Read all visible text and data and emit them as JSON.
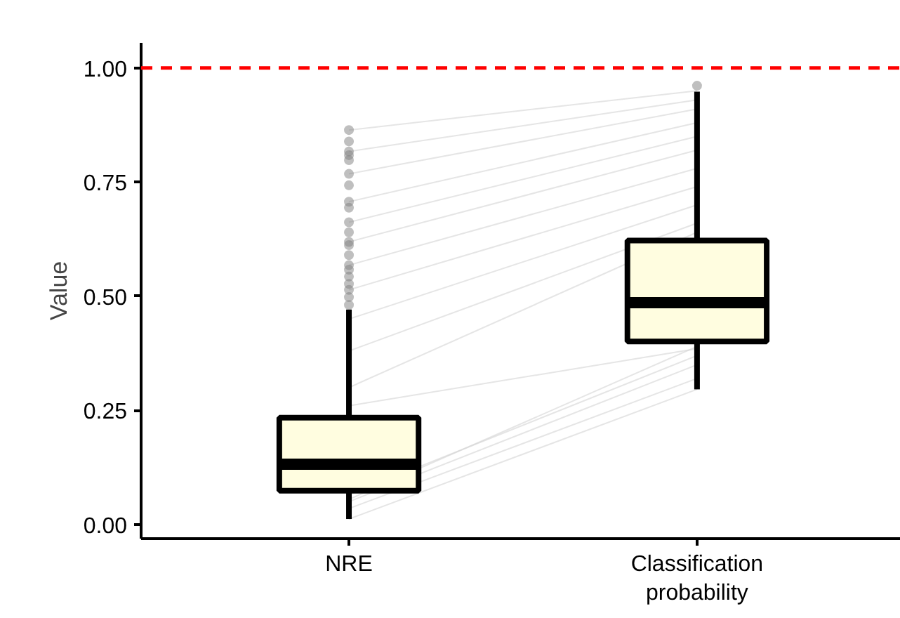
{
  "chart_data": {
    "type": "box",
    "ylabel": "Value",
    "categories": [
      "NRE",
      "Classification probability"
    ],
    "ylim": [
      -0.031,
      1.055
    ],
    "yticks": [
      {
        "value": 0,
        "label": "0.00"
      },
      {
        "value": 0.25,
        "label": "0.25"
      },
      {
        "value": 0.5,
        "label": "0.50"
      },
      {
        "value": 0.75,
        "label": "0.75"
      },
      {
        "value": 1,
        "label": "1.00"
      }
    ],
    "grid": false,
    "ref_lines": [
      {
        "axis": "y",
        "value": 1.0,
        "label": null,
        "color": "#ff0000",
        "line_style": "dashed"
      }
    ],
    "series": [
      {
        "type": "line",
        "color": "#d3d3d3",
        "values": [
          0.864,
          0.95
        ]
      },
      {
        "type": "line",
        "color": "#d3d3d3",
        "values": [
          0.817,
          0.93
        ]
      },
      {
        "type": "line",
        "color": "#d3d3d3",
        "values": [
          0.768,
          0.91
        ]
      },
      {
        "type": "line",
        "color": "#d3d3d3",
        "values": [
          0.707,
          0.88
        ]
      },
      {
        "type": "line",
        "color": "#d3d3d3",
        "values": [
          0.662,
          0.85
        ]
      },
      {
        "type": "line",
        "color": "#d3d3d3",
        "values": [
          0.619,
          0.82
        ]
      },
      {
        "type": "line",
        "color": "#d3d3d3",
        "values": [
          0.568,
          0.78
        ]
      },
      {
        "type": "line",
        "color": "#d3d3d3",
        "values": [
          0.514,
          0.74
        ]
      },
      {
        "type": "line",
        "color": "#d3d3d3",
        "values": [
          0.45,
          0.7
        ]
      },
      {
        "type": "line",
        "color": "#d3d3d3",
        "values": [
          0.38,
          0.66
        ]
      },
      {
        "type": "line",
        "color": "#d3d3d3",
        "values": [
          0.3,
          0.64
        ]
      },
      {
        "type": "line",
        "color": "#d3d3d3",
        "values": [
          0.26,
          0.385
        ]
      },
      {
        "type": "line",
        "color": "#d3d3d3",
        "values": [
          0.065,
          0.37
        ]
      },
      {
        "type": "line",
        "color": "#d3d3d3",
        "values": [
          0.035,
          0.32
        ]
      },
      {
        "type": "line",
        "color": "#d3d3d3",
        "values": [
          0.055,
          0.39
        ]
      },
      {
        "type": "line",
        "color": "#d3d3d3",
        "values": [
          0.05,
          0.35
        ]
      },
      {
        "type": "line",
        "color": "#d3d3d3",
        "values": [
          0.012,
          0.296
        ]
      },
      {
        "color": "#fffde0",
        "boxes": [
          {
            "low": 0.012,
            "q1": 0.074,
            "median": 0.132,
            "q3": 0.234,
            "high": 0.471,
            "outliers": [
              0.864,
              0.839,
              0.817,
              0.809,
              0.798,
              0.768,
              0.743,
              0.707,
              0.694,
              0.662,
              0.64,
              0.619,
              0.612,
              0.59,
              0.568,
              0.558,
              0.543,
              0.527,
              0.514,
              0.498,
              0.481
            ]
          },
          {
            "low": 0.296,
            "q1": 0.401,
            "median": 0.486,
            "q3": 0.622,
            "high": 0.948,
            "outliers": [
              0.961
            ]
          }
        ]
      }
    ]
  }
}
